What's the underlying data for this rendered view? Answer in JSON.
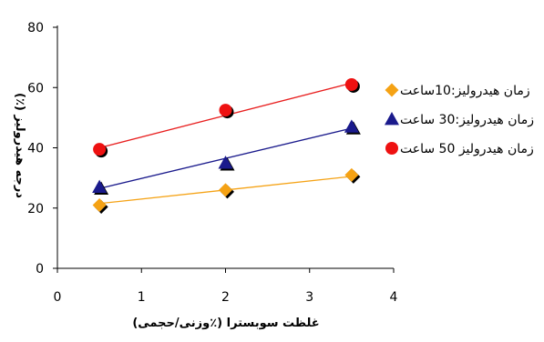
{
  "chart_data": {
    "type": "scatter",
    "xlabel": "غلظت سوبسترا (٪وزنی/حجمی)",
    "ylabel": "درجه هیدرولیز (٪)",
    "xlim": [
      0,
      4
    ],
    "ylim": [
      0,
      80
    ],
    "x_ticks": [
      "0",
      "1",
      "2",
      "3",
      "4"
    ],
    "y_ticks": [
      "0",
      "20",
      "40",
      "60",
      "80"
    ],
    "grid": false,
    "legend_position": "right",
    "series": [
      {
        "name": "زمان هیدرولیز:10ساعت",
        "marker": "diamond",
        "color": "#f5a214",
        "line_color": "#f5a214",
        "x": [
          0.5,
          2,
          3.5
        ],
        "y": [
          21,
          26,
          31
        ],
        "fit": [
          [
            0.5,
            21.5
          ],
          [
            3.5,
            30.5
          ]
        ]
      },
      {
        "name": "زمان هیدرولیز:30 ساعت",
        "marker": "triangle",
        "color": "#1a1a8c",
        "line_color": "#1a1a8c",
        "x": [
          0.5,
          2,
          3.5
        ],
        "y": [
          27,
          35,
          47
        ],
        "fit": [
          [
            0.5,
            26.5
          ],
          [
            3.5,
            46.5
          ]
        ]
      },
      {
        "name": "زمان هیدرولیز 50 ساعت",
        "marker": "circle",
        "color": "#ee1111",
        "line_color": "#e81e1e",
        "x": [
          0.5,
          2,
          3.5
        ],
        "y": [
          39.5,
          52.5,
          61
        ],
        "fit": [
          [
            0.5,
            40
          ],
          [
            3.5,
            61.5
          ]
        ]
      }
    ]
  }
}
